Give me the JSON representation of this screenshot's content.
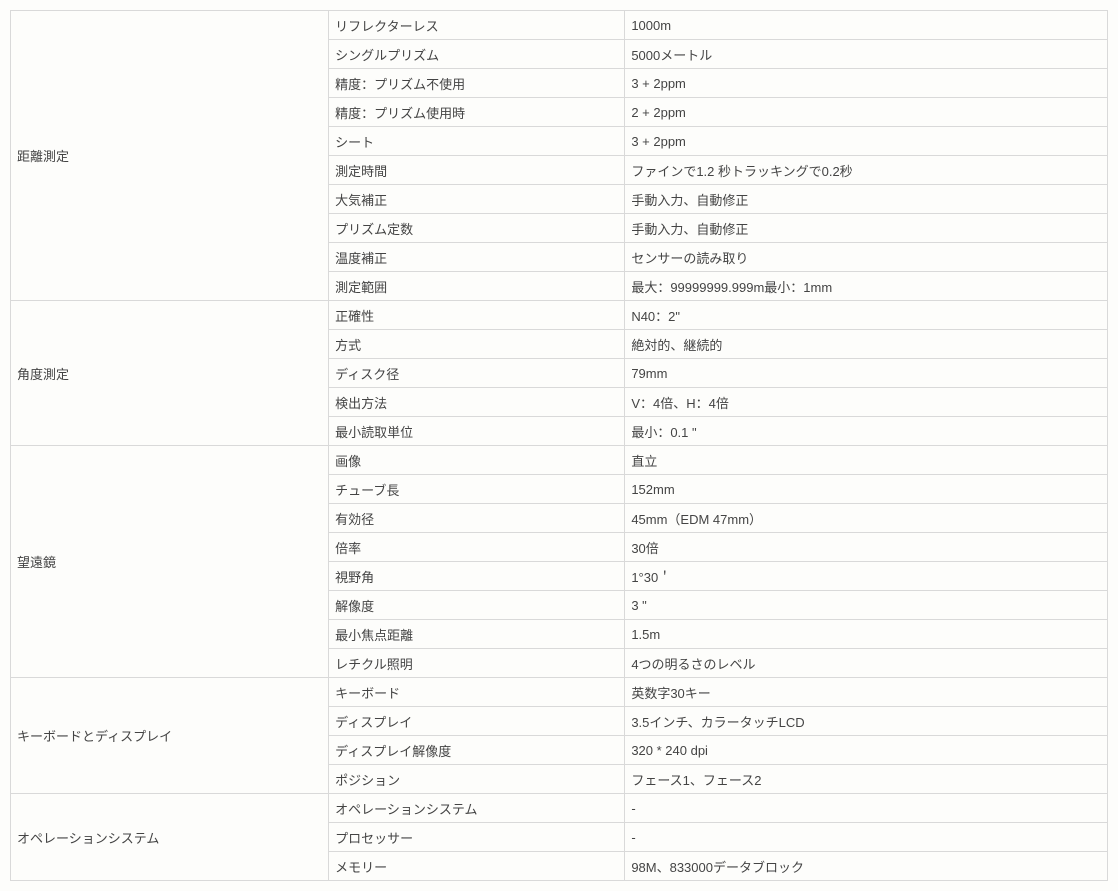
{
  "sections": [
    {
      "name": "距離測定",
      "rows": [
        [
          "リフレクターレス",
          "1000m"
        ],
        [
          "シングルプリズム",
          "5000メートル"
        ],
        [
          "精度：プリズム不使用",
          "3 + 2ppm"
        ],
        [
          "精度：プリズム使用時",
          "2 + 2ppm"
        ],
        [
          "シート",
          "3 + 2ppm"
        ],
        [
          "測定時間",
          "ファインで1.2 秒トラッキングで0.2秒"
        ],
        [
          "大気補正",
          "手動入力、自動修正"
        ],
        [
          "プリズム定数",
          "手動入力、自動修正"
        ],
        [
          "温度補正",
          "センサーの読み取り"
        ],
        [
          "測定範囲",
          "最大：99999999.999m最小：1mm"
        ]
      ]
    },
    {
      "name": "角度測定",
      "rows": [
        [
          "正確性",
          "N40：2\""
        ],
        [
          "方式",
          "絶対的、継続的"
        ],
        [
          "ディスク径",
          "79mm"
        ],
        [
          "検出方法",
          "V：4倍、H：4倍"
        ],
        [
          "最小読取単位",
          "最小：0.1 \""
        ]
      ]
    },
    {
      "name": "望遠鏡",
      "rows": [
        [
          "画像",
          "直立"
        ],
        [
          "チューブ長",
          "152mm"
        ],
        [
          "有効径",
          "45mm（EDM 47mm）"
        ],
        [
          "倍率",
          "30倍"
        ],
        [
          "視野角",
          "1°30＇"
        ],
        [
          "解像度",
          "3 \""
        ],
        [
          "最小焦点距離",
          "1.5m"
        ],
        [
          "レチクル照明",
          "4つの明るさのレベル"
        ]
      ]
    },
    {
      "name": "キーボードとディスプレイ",
      "rows": [
        [
          "キーボード",
          "英数字30キー"
        ],
        [
          "ディスプレイ",
          "3.5インチ、カラータッチLCD"
        ],
        [
          "ディスプレイ解像度",
          "320 * 240 dpi"
        ],
        [
          "ポジション",
          "フェース1、フェース2"
        ]
      ]
    },
    {
      "name": "オペレーションシステム",
      "rows": [
        [
          "オペレーションシステム",
          "-"
        ],
        [
          "プロセッサー",
          "-"
        ],
        [
          "メモリー",
          "98M、833000データブロック"
        ]
      ]
    }
  ]
}
